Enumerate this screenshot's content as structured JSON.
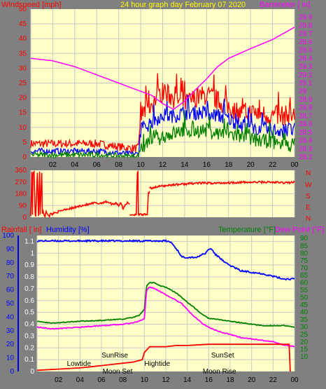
{
  "colors": {
    "background": "#808080",
    "plot_bg": "#ffffc8",
    "grid": "#c8c8c8",
    "red": "#ff0000",
    "blue": "#0000ff",
    "darkblue": "#0000e0",
    "green": "#008000",
    "magenta": "#ff00ff",
    "yellow": "#ffff00",
    "wind_axis_text": "#ff0000",
    "baro_axis_text": "#ff00ff",
    "rain_axis_text": "#0000ff",
    "temp_axis_text": "#008000"
  },
  "header": {
    "left": "Windspeed [mph]",
    "center": "24 hour graph day   February 07 2020",
    "right": "Barometer [ in]"
  },
  "mid_header": {
    "rainfall": "Rainfall [ in]",
    "humidity": "Humidity [%]",
    "temperature": "Temperature [°F]",
    "dewpoint": "Dew Point [°F]"
  },
  "compass_labels": [
    "N",
    "W",
    "S",
    "E",
    "N"
  ],
  "chart_data": [
    {
      "type": "line",
      "name": "wind",
      "title": "24 hour graph day   February 07 2020",
      "ylabel": "Windspeed [mph]",
      "y2label": "Barometer [ in]",
      "xlim": [
        0,
        24
      ],
      "ylim": [
        0,
        50
      ],
      "y2lim": [
        28.2,
        30.0
      ],
      "x_ticks": [
        "02",
        "04",
        "06",
        "08",
        "10",
        "12",
        "14",
        "16",
        "18",
        "20",
        "22",
        "00"
      ],
      "y_ticks": [
        "50",
        "45",
        "40",
        "35",
        "30",
        "25",
        "20",
        "15",
        "10",
        "5",
        "0"
      ],
      "y2_ticks": [
        "29.9",
        "29.8",
        "29.7",
        "29.6",
        "29.5",
        "29.4",
        "29.3",
        "29.2",
        "29.1",
        "29",
        "28.9",
        "28.8",
        "28.7",
        "28.6",
        "28.5",
        "28.4",
        "28.3",
        "28.2"
      ],
      "barometer": {
        "x": [
          0,
          2,
          4,
          6,
          8,
          9,
          10,
          11,
          12,
          13,
          14,
          15,
          16,
          17,
          18,
          20,
          22,
          24
        ],
        "y": [
          29.4,
          29.37,
          29.3,
          29.2,
          29.1,
          29.05,
          29.0,
          28.95,
          28.85,
          28.78,
          28.88,
          29.02,
          29.15,
          29.3,
          29.4,
          29.52,
          29.63,
          29.78
        ]
      },
      "gust_mean": {
        "x": [
          0,
          6,
          9,
          9.8,
          10,
          11,
          12,
          13,
          14,
          15,
          16,
          17,
          18,
          19,
          20,
          22,
          24
        ],
        "y": [
          4.5,
          4.5,
          3,
          3,
          14,
          18,
          22,
          20,
          18,
          20,
          21,
          19,
          17,
          15,
          15,
          14,
          14
        ]
      },
      "gust_amp": 3.5,
      "avg_mean": {
        "x": [
          0,
          6,
          9,
          9.8,
          10,
          11,
          12,
          13,
          14,
          15,
          16,
          17,
          18,
          19,
          20,
          22,
          24
        ],
        "y": [
          2,
          2,
          1,
          1,
          9,
          12,
          14,
          14,
          15,
          15,
          15,
          14,
          13,
          11,
          10,
          9,
          9
        ]
      },
      "avg_amp": 2.5,
      "low_mean": {
        "x": [
          0,
          6,
          9,
          9.8,
          10,
          11,
          12,
          13,
          14,
          15,
          16,
          17,
          18,
          19,
          20,
          22,
          24
        ],
        "y": [
          0.7,
          0.7,
          0.2,
          0.2,
          3,
          5,
          7,
          8,
          9,
          9,
          9,
          8,
          8,
          7,
          6,
          5,
          4
        ]
      },
      "low_amp": 2.5,
      "wind_seed": 7
    },
    {
      "type": "line",
      "name": "direction",
      "xlim": [
        0,
        24
      ],
      "ylim": [
        0,
        360
      ],
      "y_ticks": [
        "360",
        "270",
        "180",
        "90",
        "0"
      ],
      "segments": [
        {
          "x": [
            0,
            0.1,
            0.15,
            0.2,
            0.3,
            0.4,
            0.45,
            0.6,
            0.7,
            0.8,
            0.85,
            1,
            1.05,
            1.1,
            1.2,
            1.3,
            1.4,
            1.5,
            1.6,
            1.7,
            1.8,
            1.9,
            2.0
          ],
          "y": [
            10,
            350,
            20,
            340,
            350,
            20,
            10,
            340,
            10,
            350,
            20,
            340,
            30,
            50,
            20,
            10,
            40,
            30,
            20,
            10,
            30,
            20,
            30
          ]
        },
        {
          "x": [
            2.0,
            2.4,
            2.8,
            3.0,
            3.4,
            3.8,
            4.2,
            4.6,
            5.0,
            5.4,
            5.8,
            6.2,
            6.6,
            7.0,
            7.4,
            7.8,
            8.0,
            8.2,
            8.4,
            8.6,
            8.8,
            9.0
          ],
          "y": [
            30,
            40,
            50,
            60,
            65,
            70,
            80,
            90,
            95,
            100,
            110,
            105,
            115,
            120,
            100,
            110,
            90,
            115,
            60,
            100,
            110,
            100
          ]
        },
        {
          "x": [
            9.0,
            9.6,
            9.7,
            9.75,
            9.8,
            9.9,
            10.6,
            10.7,
            10.8
          ],
          "y": [
            20,
            20,
            350,
            350,
            20,
            20,
            20,
            180,
            200
          ]
        },
        {
          "x": [
            10.8,
            11.2,
            11.6,
            12.0,
            12.5,
            13.0,
            13.5,
            14.0,
            14.5,
            15.0,
            16.0,
            17.0,
            18.0,
            19.0,
            20.0,
            21.0,
            22.0,
            23.0,
            24.0
          ],
          "y": [
            220,
            230,
            235,
            240,
            245,
            250,
            252,
            255,
            258,
            262,
            262,
            262,
            265,
            268,
            268,
            270,
            268,
            265,
            268
          ]
        }
      ],
      "noise_amp": 8
    },
    {
      "type": "line",
      "name": "temperature",
      "xlim": [
        0,
        24
      ],
      "ylim_rain": [
        0,
        1.15
      ],
      "ylim_humidity": [
        0,
        100
      ],
      "ylim_temp": [
        0,
        92
      ],
      "left_ticks_rain": [
        "1.1",
        "1",
        "0.9",
        "0.8",
        "0.7",
        "0.6",
        "0.5",
        "0.4",
        "0.3",
        "0.2",
        "0.1",
        "0"
      ],
      "left_ticks_hum": [
        "100",
        "90",
        "80",
        "70",
        "60",
        "50",
        "40",
        "30",
        "20",
        "10",
        "0"
      ],
      "right_ticks": [
        "90",
        "85",
        "80",
        "75",
        "70",
        "65",
        "60",
        "55",
        "50",
        "45",
        "40",
        "35",
        "30",
        "25",
        "20",
        "15",
        "10"
      ],
      "x_ticks": [
        "02",
        "04",
        "06",
        "08",
        "10",
        "12",
        "14",
        "16",
        "18",
        "20",
        "22",
        "00"
      ],
      "humidity": {
        "x": [
          0,
          2,
          4,
          6,
          8,
          10,
          11,
          12,
          12.5,
          13,
          13.2,
          13.5,
          13.8,
          14,
          14.5,
          15,
          15.3,
          15.6,
          16,
          16.3,
          16.6,
          17,
          17.5,
          18,
          18.5,
          19,
          20,
          21,
          22,
          23,
          24
        ],
        "y": [
          96,
          96,
          96,
          96,
          96,
          96,
          96,
          96,
          95,
          90,
          88,
          84,
          84,
          84,
          84,
          84,
          86,
          86,
          90,
          90,
          86,
          84,
          80,
          78,
          76,
          74,
          73,
          72,
          70,
          68,
          68
        ]
      },
      "temperature": {
        "x": [
          0,
          1,
          2,
          4,
          6,
          8,
          9,
          9.5,
          10,
          10.2,
          10.5,
          11,
          11.5,
          12,
          12.5,
          13,
          13.5,
          14,
          14.5,
          15,
          15.5,
          16,
          17,
          18,
          19,
          20,
          21,
          22,
          23,
          24
        ],
        "y": [
          34,
          33,
          33,
          34,
          34.5,
          35.5,
          36.5,
          38,
          42,
          58,
          60,
          60,
          58,
          57,
          55,
          53,
          50,
          47,
          44,
          41,
          38,
          36,
          35,
          34,
          33,
          32,
          31,
          31,
          31,
          30
        ]
      },
      "dewpoint": {
        "x": [
          0,
          1,
          2,
          4,
          6,
          8,
          9,
          9.5,
          10,
          10.2,
          10.5,
          11,
          11.5,
          12,
          12.5,
          13,
          13.5,
          14,
          14.5,
          15,
          15.5,
          16,
          17,
          18,
          19,
          20,
          21,
          22,
          23,
          24
        ],
        "y": [
          30,
          29,
          29,
          30,
          31,
          32,
          33,
          34,
          36,
          55,
          57,
          56,
          54,
          52,
          50,
          48,
          46,
          42,
          38,
          35,
          32,
          30,
          27,
          25,
          23,
          22,
          21,
          20,
          18,
          17
        ]
      },
      "rain": {
        "x": [
          0,
          2,
          4,
          5,
          6,
          7,
          8,
          9,
          9.8,
          10,
          10.5,
          11,
          12,
          13,
          14,
          16,
          18,
          20,
          22,
          23.5,
          23.6
        ],
        "y": [
          0.01,
          0.02,
          0.03,
          0.04,
          0.05,
          0.06,
          0.07,
          0.08,
          0.1,
          0.16,
          0.21,
          0.21,
          0.21,
          0.22,
          0.22,
          0.23,
          0.23,
          0.23,
          0.23,
          0.23,
          0.0
        ]
      },
      "noise_amp": 0.6
    }
  ],
  "annotations": [
    {
      "text": "SunRise",
      "x": 7.25,
      "row": 1
    },
    {
      "text": "Lowtide",
      "x": 3.9,
      "row": 2
    },
    {
      "text": "Moon Set",
      "x": 7.5,
      "row": 3
    },
    {
      "text": "Hightide",
      "x": 11.2,
      "row": 2
    },
    {
      "text": "SunSet",
      "x": 17.3,
      "row": 1
    },
    {
      "text": "Moon Rise",
      "x": 17.0,
      "row": 3
    }
  ]
}
